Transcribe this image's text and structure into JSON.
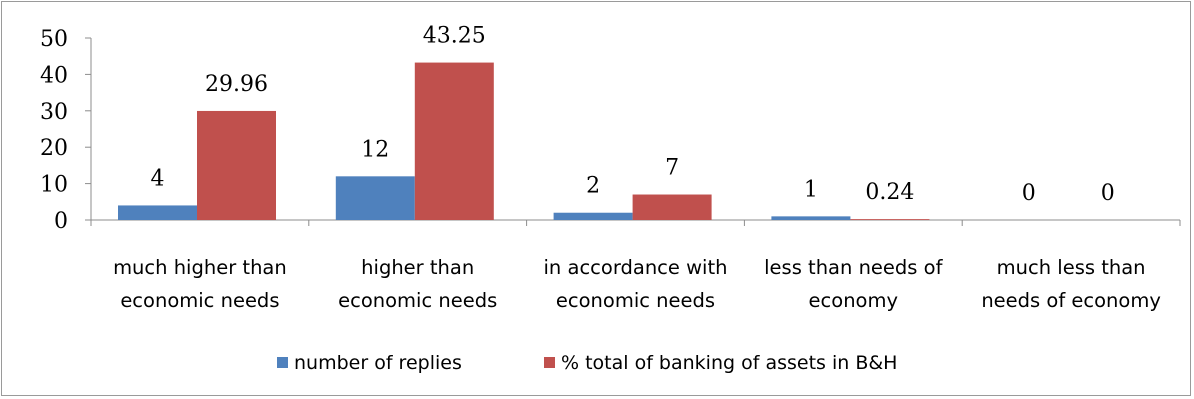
{
  "chart_data": {
    "type": "bar",
    "categories": [
      [
        "much higher than",
        "economic needs"
      ],
      [
        "higher than",
        "economic needs"
      ],
      [
        "in accordance with",
        "economic needs"
      ],
      [
        "less than needs of",
        "economy"
      ],
      [
        "much less than",
        "needs of economy"
      ]
    ],
    "series": [
      {
        "name": "number of replies",
        "color": "#4f81bd",
        "values": [
          4,
          12,
          2,
          1,
          0
        ],
        "labels": [
          "4",
          "12",
          "2",
          "1",
          "0"
        ]
      },
      {
        "name": "% total of banking of assets in B&H",
        "color": "#c0504d",
        "values": [
          29.96,
          43.25,
          7,
          0.24,
          0
        ],
        "labels": [
          "29.96",
          "43.25",
          "7",
          "0.24",
          "0"
        ]
      }
    ],
    "ylim": [
      0,
      50
    ],
    "yticks": [
      "0",
      "10",
      "20",
      "30",
      "40",
      "50"
    ],
    "grid": false,
    "legend": "bottom"
  }
}
